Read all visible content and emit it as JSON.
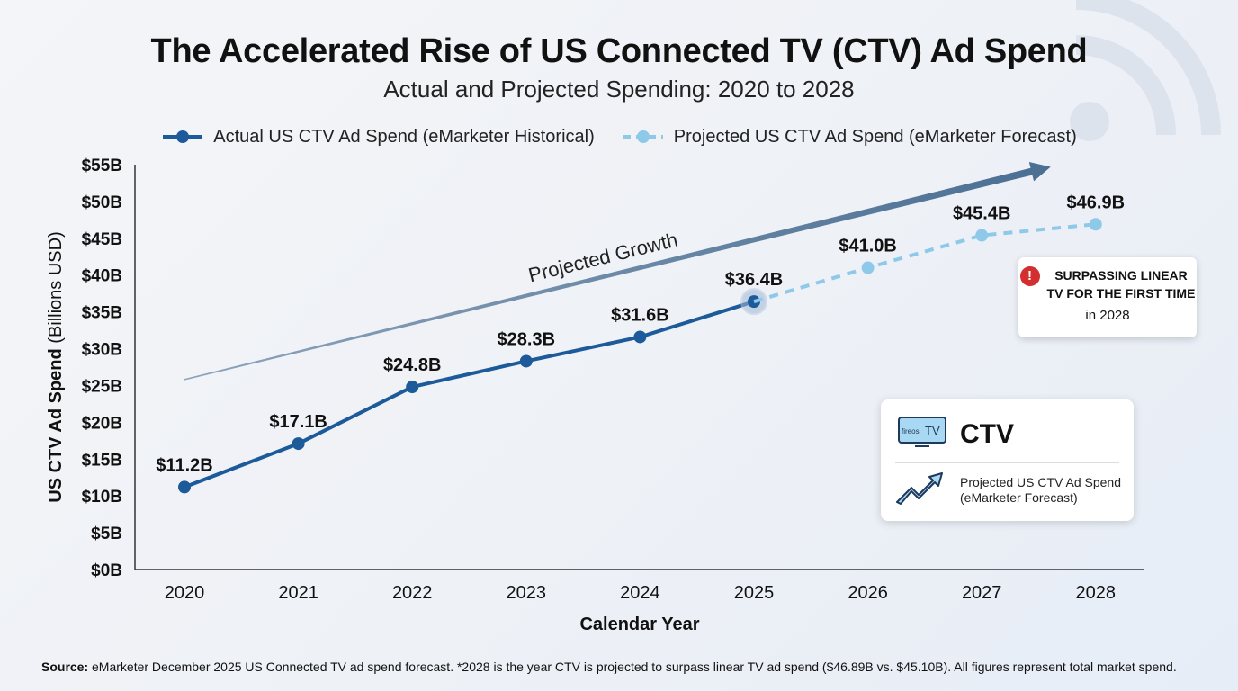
{
  "title": "The Accelerated Rise of US Connected TV (CTV) Ad Spend",
  "subtitle": "Actual and Projected Spending: 2020 to 2028",
  "legend": {
    "actual": "Actual US CTV Ad Spend (eMarketer Historical)",
    "projected": "Projected US CTV Ad Spend (eMarketer Forecast)"
  },
  "colors": {
    "actual": "#1d5a9a",
    "projected": "#8ec9ea",
    "trend_arrow": "#4a6f93",
    "alert": "#d32f2f"
  },
  "annotations": {
    "trend_label": "Projected Growth",
    "callout_title_line1": "SURPASSING LINEAR",
    "callout_title_line2": "TV FOR THE FIRST TIME",
    "callout_sub": "in 2028",
    "callout_icon": "exclamation-icon"
  },
  "ctv_card": {
    "tv_icon_text": "TV",
    "tv_brand_text": "fireos",
    "title": "CTV",
    "desc_line1": "Projected US CTV Ad Spend",
    "desc_line2": "(eMarketer Forecast)",
    "icons": [
      "tv-icon",
      "trend-up-arrow-icon"
    ]
  },
  "footnote": {
    "label": "Source:",
    "text": "eMarketer December 2025 US Connected TV ad spend forecast. *2028 is the year CTV is projected to surpass linear TV ad spend ($46.89B vs. $45.10B). All figures represent total market spend."
  },
  "chart_data": {
    "type": "line",
    "title": "The Accelerated Rise of US Connected TV (CTV) Ad Spend",
    "subtitle": "Actual and Projected Spending: 2020 to 2028",
    "xlabel": "Calendar Year",
    "ylabel_bold": "US CTV Ad Spend",
    "ylabel_rest": "(Billions USD)",
    "ylim": [
      0,
      55
    ],
    "y_ticks": [
      0,
      5,
      10,
      15,
      20,
      25,
      30,
      35,
      40,
      45,
      50,
      55
    ],
    "y_tick_labels": [
      "$0B",
      "$5B",
      "$10B",
      "$15B",
      "$20B",
      "$25B",
      "$30B",
      "$35B",
      "$40B",
      "$45B",
      "$50B",
      "$55B"
    ],
    "categories": [
      "2020",
      "2021",
      "2022",
      "2023",
      "2024",
      "2025",
      "2026",
      "2027",
      "2028"
    ],
    "grid": false,
    "legend_position": "top-center",
    "series": [
      {
        "name": "Actual US CTV Ad Spend (eMarketer Historical)",
        "style": "solid",
        "points": [
          {
            "x": "2020",
            "y": 11.2,
            "label": "$11.2B"
          },
          {
            "x": "2021",
            "y": 17.1,
            "label": "$17.1B"
          },
          {
            "x": "2022",
            "y": 24.8,
            "label": "$24.8B"
          },
          {
            "x": "2023",
            "y": 28.3,
            "label": "$28.3B"
          },
          {
            "x": "2024",
            "y": 31.6,
            "label": "$31.6B"
          },
          {
            "x": "2025",
            "y": 36.4,
            "label": "$36.4B"
          }
        ]
      },
      {
        "name": "Projected US CTV Ad Spend (eMarketer Forecast)",
        "style": "dashed",
        "points": [
          {
            "x": "2025",
            "y": 36.4
          },
          {
            "x": "2026",
            "y": 41.0,
            "label": "$41.0B"
          },
          {
            "x": "2027",
            "y": 45.4,
            "label": "$45.4B"
          },
          {
            "x": "2028",
            "y": 46.9,
            "label": "$46.9B"
          }
        ]
      }
    ],
    "trend_arrow": {
      "label": "Projected Growth",
      "from": {
        "x": "2020",
        "y": 25.8
      },
      "to": {
        "x": "2028",
        "y": 54.7
      }
    }
  }
}
